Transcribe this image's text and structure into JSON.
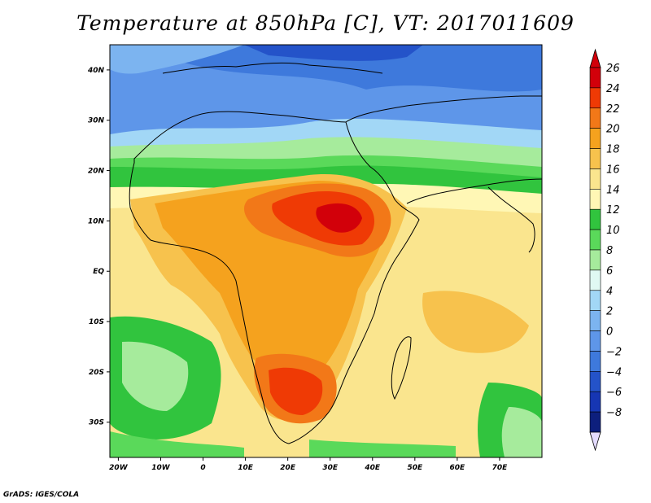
{
  "title": "Temperature at 850hPa [C], VT: 2017011609",
  "credit": "GrADS: IGES/COLA",
  "map": {
    "lon_range": [
      -22,
      80
    ],
    "lat_range": [
      -37,
      45
    ],
    "lat_ticks": [
      {
        "value": 40,
        "label": "40N"
      },
      {
        "value": 30,
        "label": "30N"
      },
      {
        "value": 20,
        "label": "20N"
      },
      {
        "value": 10,
        "label": "10N"
      },
      {
        "value": 0,
        "label": "EQ"
      },
      {
        "value": -10,
        "label": "10S"
      },
      {
        "value": -20,
        "label": "20S"
      },
      {
        "value": -30,
        "label": "30S"
      }
    ],
    "lon_ticks": [
      {
        "value": -20,
        "label": "20W"
      },
      {
        "value": -10,
        "label": "10W"
      },
      {
        "value": 0,
        "label": "0"
      },
      {
        "value": 10,
        "label": "10E"
      },
      {
        "value": 20,
        "label": "20E"
      },
      {
        "value": 30,
        "label": "30E"
      },
      {
        "value": 40,
        "label": "40E"
      },
      {
        "value": 50,
        "label": "50E"
      },
      {
        "value": 60,
        "label": "60E"
      },
      {
        "value": 70,
        "label": "70E"
      }
    ]
  },
  "colorbar": {
    "levels": [
      "26",
      "24",
      "22",
      "20",
      "18",
      "16",
      "14",
      "12",
      "10",
      "8",
      "6",
      "4",
      "2",
      "0",
      "−2",
      "−4",
      "−6",
      "−8"
    ],
    "top_arrow_color": "#d2000a",
    "bottom_arrow_color": "#e4dcff",
    "colors": [
      "#d2000a",
      "#ef3a05",
      "#f27818",
      "#f5a21e",
      "#f7c24d",
      "#fae58e",
      "#fff7b5",
      "#31c43e",
      "#5ad95a",
      "#a6eb9c",
      "#e0f9f3",
      "#a2d7f6",
      "#7cb4f0",
      "#5e96e9",
      "#3e79dc",
      "#2453c9",
      "#1636b3",
      "#0d1f7d"
    ]
  }
}
